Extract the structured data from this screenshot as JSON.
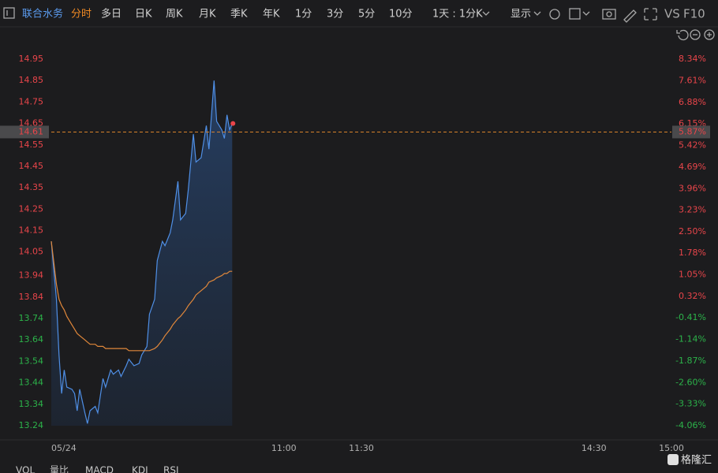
{
  "toolbar": {
    "stock": "联合水务",
    "tabs": [
      "分时",
      "多日",
      "日K",
      "周K",
      "月K",
      "季K",
      "年K",
      "1分",
      "3分",
      "5分",
      "10分"
    ],
    "period": "1天 : 1分K",
    "display": "显示",
    "vs": "VS",
    "f10": "F10"
  },
  "indicator_tabs": [
    "VOL",
    "量比",
    "MACD",
    "KDJ",
    "RSI"
  ],
  "watermark": "格隆汇",
  "chart_data": {
    "type": "line",
    "x": [
      0,
      2,
      3,
      4,
      5,
      6,
      8,
      9,
      10,
      11,
      13,
      14,
      15,
      17,
      18,
      20,
      21,
      23,
      24,
      26,
      27,
      29,
      30,
      32,
      34,
      35,
      37,
      38,
      40,
      41,
      43,
      44,
      46,
      47,
      49,
      50,
      52,
      53,
      55,
      56,
      58,
      60,
      61,
      63,
      64,
      66,
      67,
      68,
      69,
      70
    ],
    "series": [
      {
        "name": "price",
        "color": "#4f8fe6",
        "values": [
          14.1,
          13.83,
          13.57,
          13.39,
          13.5,
          13.42,
          13.41,
          13.39,
          13.31,
          13.41,
          13.3,
          13.25,
          13.31,
          13.33,
          13.3,
          13.46,
          13.42,
          13.5,
          13.48,
          13.5,
          13.47,
          13.52,
          13.55,
          13.52,
          13.53,
          13.57,
          13.61,
          13.76,
          13.83,
          14.01,
          14.1,
          14.08,
          14.14,
          14.2,
          14.38,
          14.2,
          14.23,
          14.34,
          14.6,
          14.47,
          14.49,
          14.64,
          14.53,
          14.85,
          14.66,
          14.62,
          14.58,
          14.69,
          14.62,
          14.65
        ]
      },
      {
        "name": "average",
        "color": "#e0873a",
        "values": [
          14.1,
          13.9,
          13.83,
          13.8,
          13.78,
          13.75,
          13.71,
          13.69,
          13.67,
          13.66,
          13.64,
          13.63,
          13.62,
          13.62,
          13.61,
          13.61,
          13.6,
          13.6,
          13.6,
          13.6,
          13.6,
          13.6,
          13.59,
          13.59,
          13.59,
          13.59,
          13.59,
          13.59,
          13.6,
          13.61,
          13.64,
          13.66,
          13.69,
          13.71,
          13.74,
          13.75,
          13.78,
          13.8,
          13.83,
          13.85,
          13.87,
          13.89,
          13.91,
          13.92,
          13.93,
          13.94,
          13.95,
          13.95,
          13.96,
          13.96
        ]
      }
    ],
    "xlim": [
      0,
      240
    ],
    "xticks": [
      {
        "value": 0,
        "label": "05/24"
      },
      {
        "value": 90,
        "label": "11:00"
      },
      {
        "value": 120,
        "label": "11:30"
      },
      {
        "value": 210,
        "label": "14:30"
      },
      {
        "value": 240,
        "label": "15:00"
      }
    ],
    "ylim": [
      13.24,
      14.95
    ],
    "yticks": [
      14.95,
      14.85,
      14.75,
      14.65,
      14.55,
      14.45,
      14.35,
      14.25,
      14.15,
      14.05,
      13.94,
      13.84,
      13.74,
      13.64,
      13.54,
      13.44,
      13.34,
      13.24
    ],
    "y2lim": [
      -4.06,
      8.34
    ],
    "y2ticks": [
      {
        "value": 8.34,
        "label": "8.34%"
      },
      {
        "value": 7.61,
        "label": "7.61%"
      },
      {
        "value": 6.88,
        "label": "6.88%"
      },
      {
        "value": 6.15,
        "label": "6.15%"
      },
      {
        "value": 5.42,
        "label": "5.42%"
      },
      {
        "value": 4.69,
        "label": "4.69%"
      },
      {
        "value": 3.96,
        "label": "3.96%"
      },
      {
        "value": 3.23,
        "label": "3.23%"
      },
      {
        "value": 2.5,
        "label": "2.50%"
      },
      {
        "value": 1.78,
        "label": "1.78%"
      },
      {
        "value": 1.05,
        "label": "1.05%"
      },
      {
        "value": 0.32,
        "label": "0.32%"
      },
      {
        "value": -0.41,
        "label": "-0.41%"
      },
      {
        "value": -1.14,
        "label": "-1.14%"
      },
      {
        "value": -1.87,
        "label": "-1.87%"
      },
      {
        "value": -2.6,
        "label": "-2.60%"
      },
      {
        "value": -3.33,
        "label": "-3.33%"
      },
      {
        "value": -4.06,
        "label": "-4.06%"
      }
    ],
    "last_price": 14.61,
    "last_change": {
      "value": 5.87,
      "label": "5.87%"
    }
  }
}
